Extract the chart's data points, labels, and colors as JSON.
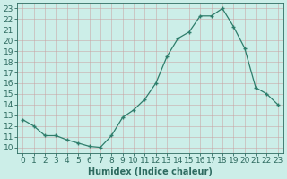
{
  "x": [
    0,
    1,
    2,
    3,
    4,
    5,
    6,
    7,
    8,
    9,
    10,
    11,
    12,
    13,
    14,
    15,
    16,
    17,
    18,
    19,
    20,
    21,
    22,
    23
  ],
  "y": [
    12.6,
    12.0,
    11.1,
    11.1,
    10.7,
    10.4,
    10.1,
    10.0,
    11.1,
    12.8,
    13.5,
    14.5,
    16.0,
    18.5,
    20.2,
    20.8,
    22.3,
    22.3,
    23.0,
    21.3,
    19.3,
    15.6,
    15.0,
    14.0
  ],
  "line_color": "#2e7d6b",
  "marker": "+",
  "bg_color": "#cceee8",
  "grid_color": "#c0d8d4",
  "xlabel": "Humidex (Indice chaleur)",
  "ylabel_ticks": [
    10,
    11,
    12,
    13,
    14,
    15,
    16,
    17,
    18,
    19,
    20,
    21,
    22,
    23
  ],
  "xlim": [
    -0.5,
    23.5
  ],
  "ylim": [
    9.5,
    23.5
  ],
  "xticks": [
    0,
    1,
    2,
    3,
    4,
    5,
    6,
    7,
    8,
    9,
    10,
    11,
    12,
    13,
    14,
    15,
    16,
    17,
    18,
    19,
    20,
    21,
    22,
    23
  ],
  "font_color": "#2e6b60",
  "font_size": 6.5,
  "label_fontsize": 7.0
}
